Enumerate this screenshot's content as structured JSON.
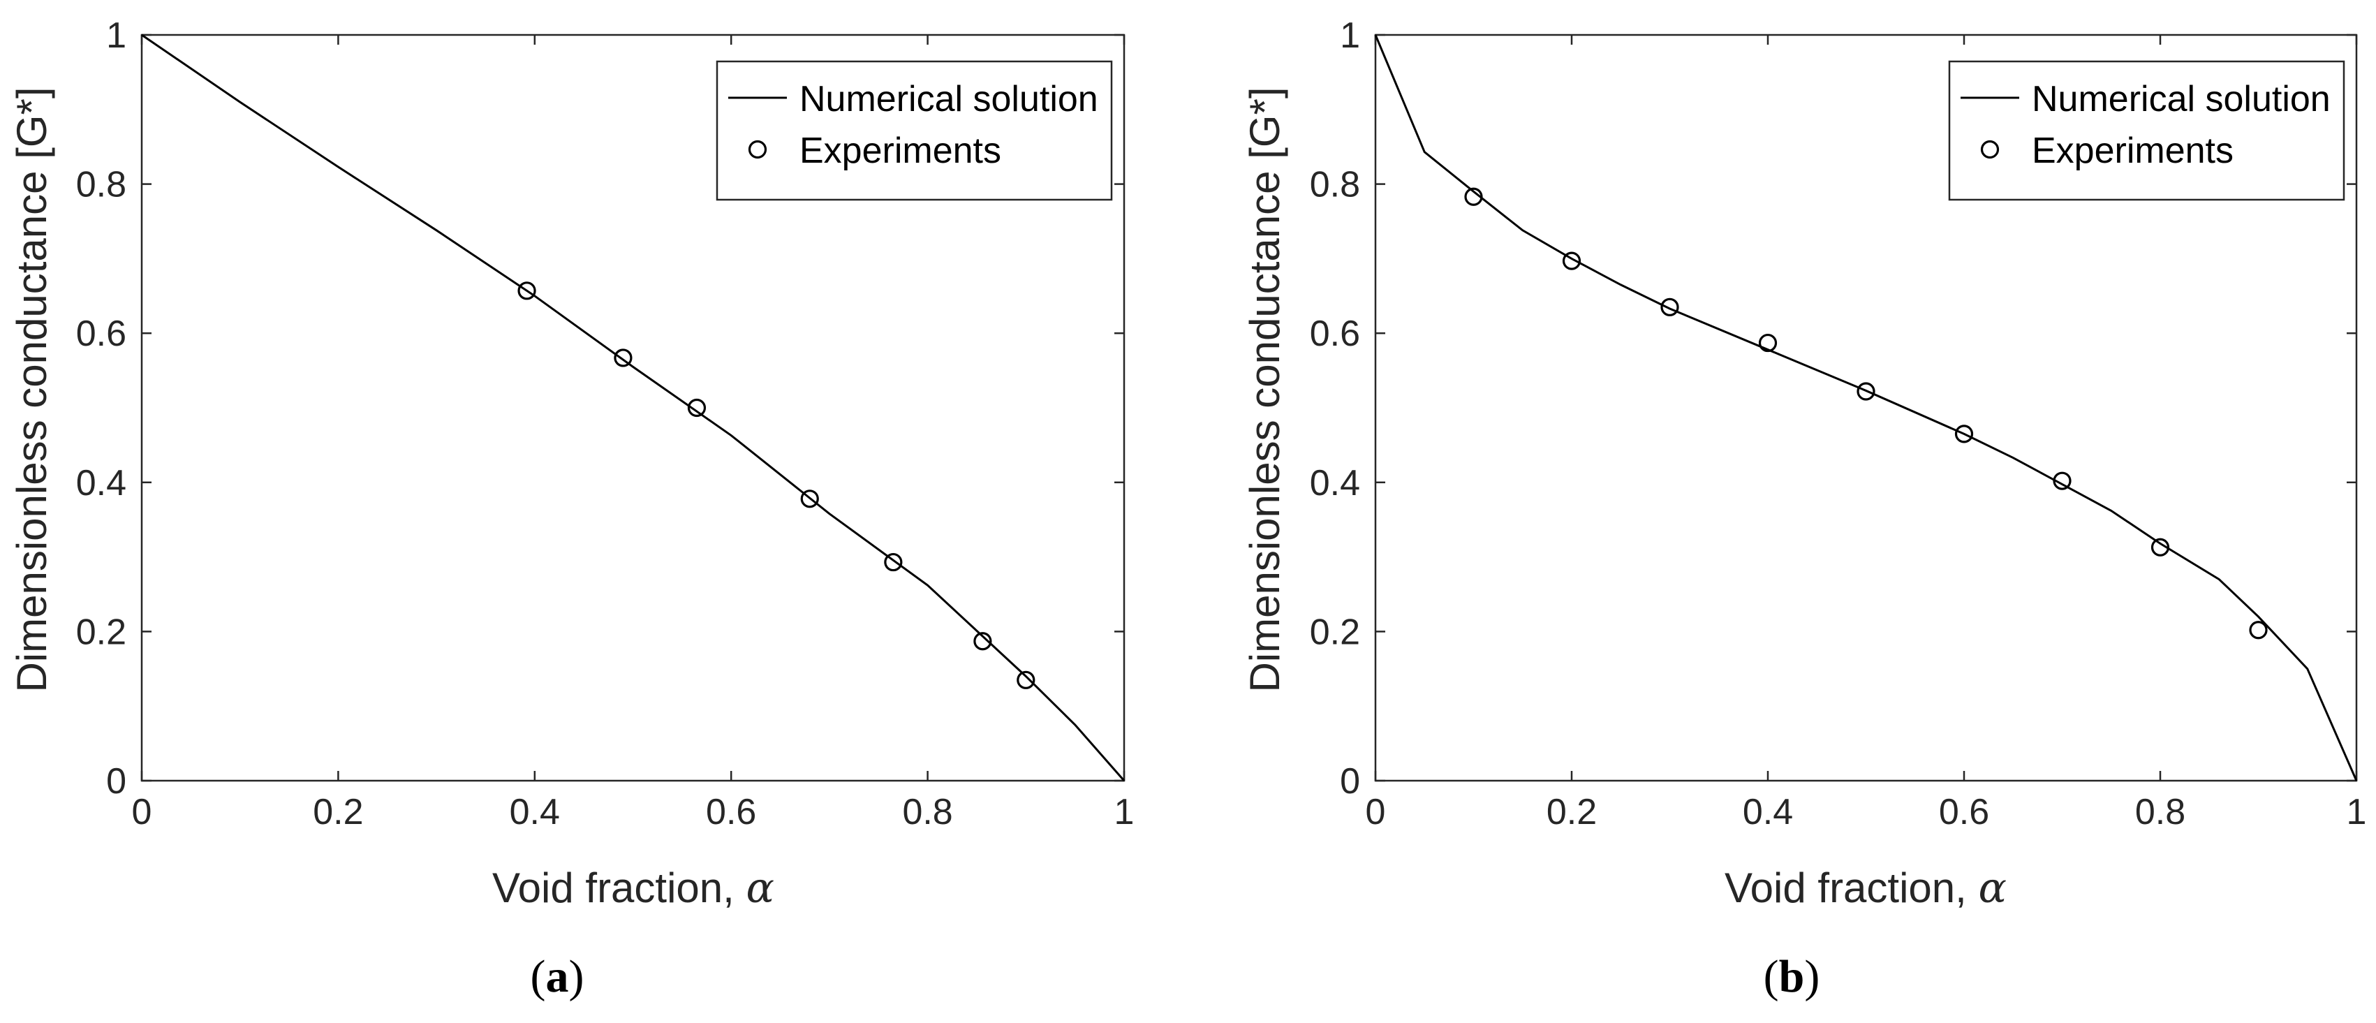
{
  "chart_data": [
    {
      "type": "line",
      "panel_label": "a",
      "xlabel_prefix": "Void fraction, ",
      "xlabel_symbol": "α",
      "ylabel": "Dimensionless conductance [G*]",
      "xlim": [
        0,
        1
      ],
      "ylim": [
        0,
        1
      ],
      "xticks": [
        "0",
        "0.2",
        "0.4",
        "0.6",
        "0.8",
        "1"
      ],
      "yticks": [
        "0",
        "0.2",
        "0.4",
        "0.6",
        "0.8",
        "1"
      ],
      "legend_position": "top-right",
      "series": [
        {
          "name": "Numerical solution",
          "style": "line",
          "x": [
            0,
            0.1,
            0.2,
            0.3,
            0.4,
            0.5,
            0.6,
            0.7,
            0.8,
            0.9,
            0.95,
            1.0
          ],
          "y": [
            1,
            0.91,
            0.823,
            0.738,
            0.65,
            0.555,
            0.463,
            0.358,
            0.262,
            0.14,
            0.075,
            0
          ]
        },
        {
          "name": "Experiments",
          "style": "marker",
          "x": [
            0.392,
            0.49,
            0.565,
            0.68,
            0.765,
            0.856,
            0.9
          ],
          "y": [
            0.657,
            0.567,
            0.5,
            0.378,
            0.293,
            0.187,
            0.135
          ]
        }
      ]
    },
    {
      "type": "line",
      "panel_label": "b",
      "xlabel_prefix": "Void fraction, ",
      "xlabel_symbol": "α",
      "ylabel": "Dimensionless conductance [G*]",
      "xlim": [
        0,
        1
      ],
      "ylim": [
        0,
        1
      ],
      "xticks": [
        "0",
        "0.2",
        "0.4",
        "0.6",
        "0.8",
        "1"
      ],
      "yticks": [
        "0",
        "0.2",
        "0.4",
        "0.6",
        "0.8",
        "1"
      ],
      "legend_position": "top-right",
      "series": [
        {
          "name": "Numerical solution",
          "style": "line",
          "x": [
            0,
            0.05,
            0.1,
            0.15,
            0.2,
            0.25,
            0.3,
            0.4,
            0.5,
            0.6,
            0.65,
            0.75,
            0.8,
            0.86,
            0.9,
            0.95,
            1.0
          ],
          "y": [
            1,
            0.843,
            0.79,
            0.738,
            0.7,
            0.665,
            0.633,
            0.578,
            0.523,
            0.465,
            0.433,
            0.362,
            0.318,
            0.27,
            0.22,
            0.15,
            0
          ]
        },
        {
          "name": "Experiments",
          "style": "marker",
          "x": [
            0.1,
            0.2,
            0.3,
            0.4,
            0.5,
            0.6,
            0.7,
            0.8,
            0.9
          ],
          "y": [
            0.783,
            0.697,
            0.635,
            0.587,
            0.522,
            0.465,
            0.402,
            0.313,
            0.202
          ]
        }
      ]
    }
  ]
}
